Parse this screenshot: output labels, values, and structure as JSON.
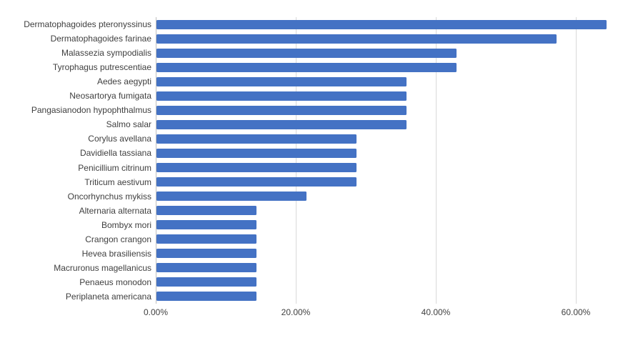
{
  "chart_data": {
    "type": "bar",
    "orientation": "horizontal",
    "title": "",
    "xlabel": "",
    "ylabel": "",
    "legend": null,
    "grid": "vertical-gridlines",
    "categories": [
      "Dermatophagoides pteronyssinus",
      "Dermatophagoides farinae",
      "Malassezia sympodialis",
      "Tyrophagus putrescentiae",
      "Aedes aegypti",
      "Neosartorya fumigata",
      "Pangasianodon hypophthalmus",
      "Salmo salar",
      "Corylus avellana",
      "Davidiella tassiana",
      "Penicillium citrinum",
      "Triticum aestivum",
      "Oncorhynchus mykiss",
      "Alternaria alternata",
      "Bombyx mori",
      "Crangon crangon",
      "Hevea brasiliensis",
      "Macruronus magellanicus",
      "Penaeus monodon",
      "Periplaneta americana"
    ],
    "values": [
      64.29,
      57.14,
      42.86,
      42.86,
      35.71,
      35.71,
      35.71,
      35.71,
      28.57,
      28.57,
      28.57,
      28.57,
      21.43,
      14.29,
      14.29,
      14.29,
      14.29,
      14.29,
      14.29,
      14.29
    ],
    "x_ticks": [
      0,
      20,
      40,
      60
    ],
    "x_tick_labels": [
      "0.00%",
      "20.00%",
      "40.00%",
      "60.00%"
    ],
    "xlim": [
      0,
      69.6
    ],
    "colors": {
      "bar": "#4472C4",
      "gridline": "#D9D9D9",
      "axis_line": "#BFBFBF",
      "text": "#3F3F3F",
      "background": "#FFFFFF"
    }
  }
}
